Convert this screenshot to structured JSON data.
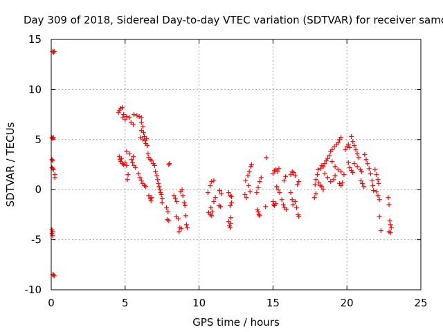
{
  "chart_data": {
    "type": "scatter",
    "title": "Day 309 of 2018, Sidereal Day-to-day VTEC variation (SDTVAR) for receiver samo",
    "xlabel": "GPS time / hours",
    "ylabel": "SDTVAR / TECUs",
    "xlim": [
      0,
      25
    ],
    "ylim": [
      -10,
      15
    ],
    "xticks": [
      "0",
      "5",
      "10",
      "15",
      "20",
      "25"
    ],
    "yticks": [
      "-10",
      "-5",
      "0",
      "5",
      "10",
      "15"
    ],
    "grid": true,
    "marker": "+",
    "marker_color": "#ff0000",
    "series": [
      {
        "name": "SDTVAR",
        "points": [
          [
            0.1,
            13.8
          ],
          [
            0.15,
            13.7
          ],
          [
            0.2,
            13.8
          ],
          [
            0.05,
            5.2
          ],
          [
            0.1,
            5.1
          ],
          [
            0.15,
            5.2
          ],
          [
            0.05,
            3.0
          ],
          [
            0.1,
            2.9
          ],
          [
            0.05,
            2.2
          ],
          [
            0.1,
            2.1
          ],
          [
            0.15,
            2.0
          ],
          [
            0.25,
            1.5
          ],
          [
            0.25,
            1.2
          ],
          [
            0.05,
            -4.0
          ],
          [
            0.1,
            -4.2
          ],
          [
            0.05,
            -4.4
          ],
          [
            0.1,
            -4.6
          ],
          [
            0.1,
            -8.5
          ],
          [
            0.15,
            -8.5
          ],
          [
            0.2,
            -8.6
          ],
          [
            4.55,
            7.7
          ],
          [
            4.6,
            7.9
          ],
          [
            4.7,
            8.1
          ],
          [
            4.8,
            8.2
          ],
          [
            4.9,
            7.5
          ],
          [
            4.85,
            7.2
          ],
          [
            5.0,
            7.0
          ],
          [
            5.1,
            7.3
          ],
          [
            5.3,
            7.2
          ],
          [
            4.6,
            3.3
          ],
          [
            4.65,
            3.0
          ],
          [
            4.7,
            2.8
          ],
          [
            4.8,
            2.6
          ],
          [
            4.9,
            2.5
          ],
          [
            5.0,
            2.7
          ],
          [
            5.1,
            2.4
          ],
          [
            4.75,
            3.1
          ],
          [
            5.1,
            3.8
          ],
          [
            5.3,
            3.6
          ],
          [
            5.2,
            1.5
          ],
          [
            5.15,
            1.0
          ],
          [
            5.4,
            6.7
          ],
          [
            5.55,
            6.5
          ],
          [
            5.6,
            7.5
          ],
          [
            5.8,
            7.4
          ],
          [
            5.95,
            7.3
          ],
          [
            6.1,
            7.2
          ],
          [
            5.45,
            3.0
          ],
          [
            5.5,
            2.7
          ],
          [
            5.6,
            2.4
          ],
          [
            5.7,
            2.2
          ],
          [
            5.55,
            3.3
          ],
          [
            6.1,
            6.7
          ],
          [
            6.2,
            6.3
          ],
          [
            6.1,
            5.9
          ],
          [
            6.25,
            5.7
          ],
          [
            6.3,
            5.3
          ],
          [
            6.05,
            5.2
          ],
          [
            6.2,
            5.0
          ],
          [
            6.35,
            4.9
          ],
          [
            6.4,
            4.6
          ],
          [
            6.5,
            4.4
          ],
          [
            6.45,
            5.1
          ],
          [
            5.9,
            1.6
          ],
          [
            6.0,
            1.2
          ],
          [
            6.1,
            0.9
          ],
          [
            6.2,
            0.6
          ],
          [
            6.3,
            0.4
          ],
          [
            6.4,
            0.3
          ],
          [
            6.55,
            3.6
          ],
          [
            6.6,
            3.2
          ],
          [
            6.7,
            3.0
          ],
          [
            6.8,
            2.9
          ],
          [
            6.9,
            2.6
          ],
          [
            7.0,
            2.4
          ],
          [
            6.6,
            -0.6
          ],
          [
            6.7,
            -0.9
          ],
          [
            6.75,
            -1.1
          ],
          [
            6.8,
            -0.8
          ],
          [
            7.05,
            1.8
          ],
          [
            7.15,
            1.4
          ],
          [
            7.2,
            1.0
          ],
          [
            7.25,
            0.6
          ],
          [
            7.3,
            0.3
          ],
          [
            7.35,
            0.0
          ],
          [
            7.4,
            -0.3
          ],
          [
            7.45,
            -0.5
          ],
          [
            7.5,
            -0.9
          ],
          [
            7.5,
            -1.3
          ],
          [
            7.95,
            2.5
          ],
          [
            8.0,
            2.6
          ],
          [
            7.8,
            -1.8
          ],
          [
            7.9,
            -2.2
          ],
          [
            7.85,
            -3.0
          ],
          [
            7.95,
            -3.1
          ],
          [
            8.3,
            -0.6
          ],
          [
            8.4,
            -0.9
          ],
          [
            8.5,
            -1.2
          ],
          [
            8.45,
            -2.7
          ],
          [
            8.6,
            -2.9
          ],
          [
            8.7,
            -3.8
          ],
          [
            8.8,
            -3.9
          ],
          [
            8.65,
            -4.2
          ],
          [
            8.75,
            -0.2
          ],
          [
            8.85,
            0.0
          ],
          [
            8.9,
            -0.6
          ],
          [
            9.0,
            -1.3
          ],
          [
            9.05,
            -1.6
          ],
          [
            9.1,
            -2.6
          ],
          [
            9.15,
            -3.5
          ],
          [
            9.2,
            -3.8
          ],
          [
            10.65,
            -2.3
          ],
          [
            10.75,
            -2.5
          ],
          [
            10.85,
            -2.6
          ],
          [
            10.9,
            -2.2
          ],
          [
            10.8,
            -1.8
          ],
          [
            11.0,
            -1.2
          ],
          [
            11.1,
            -0.8
          ],
          [
            10.6,
            -0.3
          ],
          [
            10.75,
            0.4
          ],
          [
            10.85,
            0.8
          ],
          [
            11.0,
            0.9
          ],
          [
            11.4,
            -0.1
          ],
          [
            11.5,
            -0.4
          ],
          [
            11.35,
            -1.6
          ],
          [
            11.45,
            -1.7
          ],
          [
            12.0,
            -3.2
          ],
          [
            12.05,
            -3.6
          ],
          [
            12.1,
            -3.8
          ],
          [
            12.15,
            -3.4
          ],
          [
            12.0,
            -0.3
          ],
          [
            12.1,
            -0.6
          ],
          [
            12.2,
            -0.7
          ],
          [
            12.1,
            -1.6
          ],
          [
            12.2,
            -1.3
          ],
          [
            12.15,
            -2.8
          ],
          [
            13.1,
            -0.5
          ],
          [
            13.2,
            -0.8
          ],
          [
            13.3,
            1.4
          ],
          [
            13.4,
            1.8
          ],
          [
            13.5,
            2.3
          ],
          [
            13.55,
            2.5
          ],
          [
            13.15,
            0.9
          ],
          [
            13.35,
            0.4
          ],
          [
            13.45,
            -0.2
          ],
          [
            13.95,
            -2.0
          ],
          [
            14.0,
            -2.2
          ],
          [
            14.05,
            -2.5
          ],
          [
            14.1,
            -2.6
          ],
          [
            13.9,
            -0.3
          ],
          [
            14.0,
            0.2
          ],
          [
            14.1,
            0.8
          ],
          [
            14.2,
            1.2
          ],
          [
            14.55,
            3.2
          ],
          [
            14.5,
            -1.7
          ],
          [
            15.0,
            -1.2
          ],
          [
            15.05,
            -1.5
          ],
          [
            15.1,
            -1.6
          ],
          [
            15.2,
            -1.4
          ],
          [
            15.0,
            1.6
          ],
          [
            15.1,
            1.9
          ],
          [
            15.2,
            2.0
          ],
          [
            15.3,
            1.8
          ],
          [
            15.4,
            2.1
          ],
          [
            15.25,
            0.3
          ],
          [
            15.35,
            0.0
          ],
          [
            15.45,
            -0.3
          ],
          [
            15.6,
            -1.0
          ],
          [
            15.7,
            -1.5
          ],
          [
            15.8,
            -1.8
          ],
          [
            15.9,
            -2.0
          ],
          [
            15.75,
            0.9
          ],
          [
            15.85,
            1.3
          ],
          [
            16.2,
            1.5
          ],
          [
            16.3,
            1.8
          ],
          [
            16.4,
            1.7
          ],
          [
            16.5,
            1.4
          ],
          [
            16.2,
            -0.3
          ],
          [
            16.3,
            -1.0
          ],
          [
            16.35,
            -1.5
          ],
          [
            16.5,
            -1.2
          ],
          [
            16.65,
            0.5
          ],
          [
            16.75,
            0.8
          ],
          [
            16.6,
            -1.8
          ],
          [
            16.7,
            -2.5
          ],
          [
            16.75,
            -2.7
          ],
          [
            17.8,
            -0.8
          ],
          [
            17.9,
            -0.4
          ],
          [
            17.85,
            0.5
          ],
          [
            17.9,
            1.0
          ],
          [
            18.0,
            1.5
          ],
          [
            18.05,
            2.0
          ],
          [
            18.1,
            0.7
          ],
          [
            18.2,
            0.4
          ],
          [
            18.3,
            0.3
          ],
          [
            18.4,
            0.0
          ],
          [
            18.2,
            2.1
          ],
          [
            18.3,
            2.4
          ],
          [
            18.4,
            2.3
          ],
          [
            18.5,
            2.6
          ],
          [
            18.6,
            2.9
          ],
          [
            18.7,
            3.1
          ],
          [
            18.8,
            3.4
          ],
          [
            18.9,
            3.8
          ],
          [
            18.5,
            1.6
          ],
          [
            18.7,
            1.2
          ],
          [
            18.9,
            0.8
          ],
          [
            19.1,
            1.0
          ],
          [
            19.2,
            1.4
          ],
          [
            19.0,
            4.0
          ],
          [
            19.15,
            4.3
          ],
          [
            19.3,
            4.5
          ],
          [
            19.4,
            4.7
          ],
          [
            19.5,
            5.0
          ],
          [
            19.6,
            5.2
          ],
          [
            19.0,
            2.8
          ],
          [
            19.2,
            2.3
          ],
          [
            19.4,
            2.0
          ],
          [
            19.6,
            1.8
          ],
          [
            19.8,
            1.5
          ],
          [
            19.5,
            0.6
          ],
          [
            19.6,
            0.4
          ],
          [
            19.7,
            0.7
          ],
          [
            19.9,
            4.0
          ],
          [
            20.0,
            4.3
          ],
          [
            20.1,
            4.5
          ],
          [
            20.2,
            4.2
          ],
          [
            20.1,
            2.7
          ],
          [
            20.2,
            2.2
          ],
          [
            20.3,
            1.9
          ],
          [
            20.4,
            1.7
          ],
          [
            20.3,
            5.3
          ],
          [
            20.4,
            4.8
          ],
          [
            20.5,
            4.4
          ],
          [
            20.6,
            4.0
          ],
          [
            20.7,
            3.6
          ],
          [
            20.8,
            3.2
          ],
          [
            20.5,
            2.6
          ],
          [
            20.7,
            2.3
          ],
          [
            20.9,
            2.0
          ],
          [
            21.0,
            1.8
          ],
          [
            20.95,
            0.9
          ],
          [
            21.05,
            0.6
          ],
          [
            21.15,
            0.3
          ],
          [
            21.2,
            3.5
          ],
          [
            21.3,
            3.0
          ],
          [
            21.4,
            2.6
          ],
          [
            21.5,
            2.1
          ],
          [
            21.6,
            1.6
          ],
          [
            21.7,
            0.9
          ],
          [
            21.75,
            0.4
          ],
          [
            21.8,
            -0.1
          ],
          [
            21.9,
            2.0
          ],
          [
            22.0,
            1.5
          ],
          [
            22.1,
            1.0
          ],
          [
            22.15,
            0.6
          ],
          [
            22.0,
            -0.2
          ],
          [
            22.1,
            -0.6
          ],
          [
            22.2,
            -1.0
          ],
          [
            22.2,
            -2.7
          ],
          [
            22.3,
            -4.1
          ],
          [
            22.8,
            -0.8
          ],
          [
            22.85,
            -1.5
          ],
          [
            22.9,
            -3.1
          ],
          [
            22.95,
            -3.5
          ],
          [
            23.0,
            -3.8
          ],
          [
            22.85,
            -4.2
          ],
          [
            22.95,
            -4.3
          ]
        ]
      }
    ]
  }
}
